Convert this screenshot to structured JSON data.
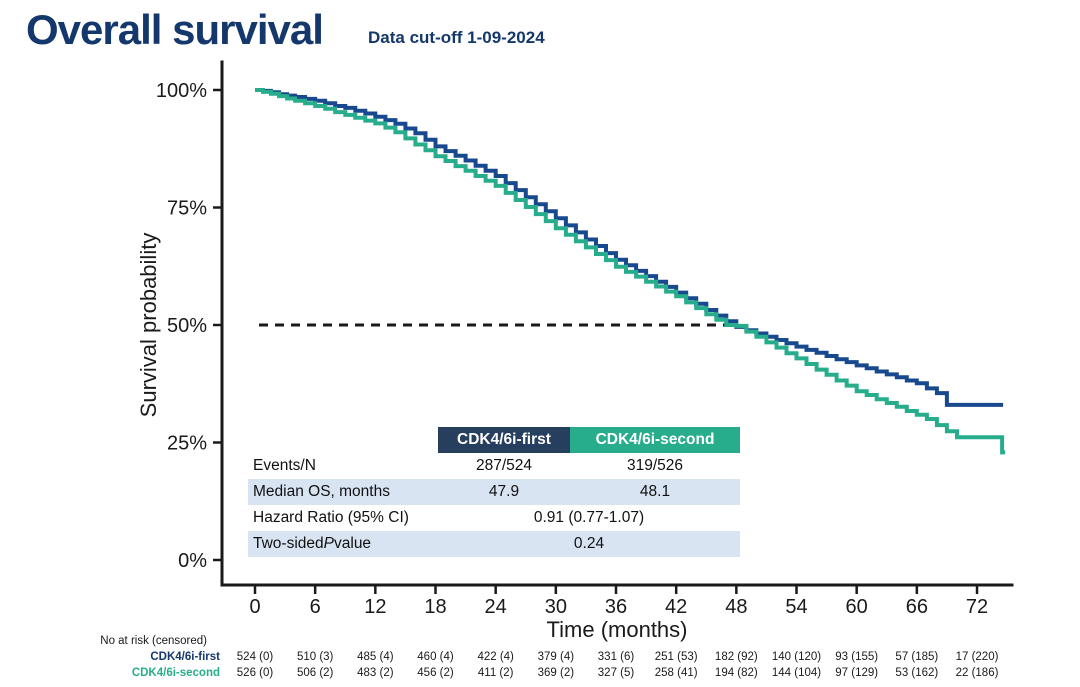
{
  "header": {
    "title": "Overall survival",
    "subtitle": "Data cut-off 1-09-2024"
  },
  "colors": {
    "title_navy": "#14386b",
    "curve_first": "#18498e",
    "curve_second": "#27ad8c",
    "table_header_first_bg": "#273f5e",
    "table_header_second_bg": "#27ad8c",
    "table_band_bg": "#d9e4f3",
    "axis": "#1a1a1a"
  },
  "chart_data": {
    "type": "line",
    "subtype": "kaplan-meier-step",
    "title": "Overall survival",
    "xlabel": "Time (months)",
    "ylabel": "Survival probability",
    "xlim": [
      0,
      76
    ],
    "ylim": [
      0,
      100
    ],
    "grid": false,
    "x_ticks": [
      0,
      6,
      12,
      18,
      24,
      30,
      36,
      42,
      48,
      54,
      60,
      66,
      72
    ],
    "y_ticks": [
      {
        "value": 100,
        "label": "100%"
      },
      {
        "value": 75,
        "label": "75%"
      },
      {
        "value": 50,
        "label": "50%"
      },
      {
        "value": 25,
        "label": "25%"
      },
      {
        "value": 0,
        "label": "0%"
      }
    ],
    "reference_line": {
      "y": 50,
      "style": "dashed",
      "x_start": 0,
      "x_end": 47.5
    },
    "series": [
      {
        "name": "CDK4/6i-first",
        "color": "#18498e",
        "points": [
          [
            0,
            100
          ],
          [
            0.8,
            99.8
          ],
          [
            1.6,
            99.5
          ],
          [
            2.4,
            99.1
          ],
          [
            3.2,
            98.8
          ],
          [
            4,
            98.5
          ],
          [
            5,
            98.1
          ],
          [
            6,
            97.7
          ],
          [
            7,
            97.2
          ],
          [
            8,
            96.6
          ],
          [
            9,
            96.2
          ],
          [
            10,
            95.6
          ],
          [
            11,
            95
          ],
          [
            12,
            94.3
          ],
          [
            13,
            93.6
          ],
          [
            14,
            92.8
          ],
          [
            15,
            91.8
          ],
          [
            16,
            90.8
          ],
          [
            17,
            89.4
          ],
          [
            18,
            88
          ],
          [
            19,
            87
          ],
          [
            20,
            86
          ],
          [
            21,
            85
          ],
          [
            22,
            83.9
          ],
          [
            23,
            82.8
          ],
          [
            24,
            81.7
          ],
          [
            25,
            80.2
          ],
          [
            26,
            78.7
          ],
          [
            27,
            77.2
          ],
          [
            28,
            75.7
          ],
          [
            29,
            74.2
          ],
          [
            30,
            72.7
          ],
          [
            31,
            71.2
          ],
          [
            32,
            69.7
          ],
          [
            33,
            68.2
          ],
          [
            34,
            66.8
          ],
          [
            35,
            65.3
          ],
          [
            36,
            63.9
          ],
          [
            37,
            62.7
          ],
          [
            38,
            61.5
          ],
          [
            39,
            60.4
          ],
          [
            40,
            59.2
          ],
          [
            41,
            58.1
          ],
          [
            42,
            56.9
          ],
          [
            43,
            55.7
          ],
          [
            44,
            54.5
          ],
          [
            45,
            53.2
          ],
          [
            46,
            52
          ],
          [
            47,
            50.8
          ],
          [
            48,
            49.6
          ],
          [
            49,
            48.9
          ],
          [
            50,
            48.2
          ],
          [
            51,
            47.5
          ],
          [
            52,
            46.8
          ],
          [
            53,
            46.1
          ],
          [
            54,
            45.4
          ],
          [
            55,
            44.7
          ],
          [
            56,
            44.1
          ],
          [
            57,
            43.4
          ],
          [
            58,
            42.7
          ],
          [
            59,
            42.1
          ],
          [
            60,
            41.4
          ],
          [
            61,
            40.8
          ],
          [
            62,
            40.1
          ],
          [
            63,
            39.5
          ],
          [
            64,
            38.9
          ],
          [
            65,
            38.2
          ],
          [
            66,
            37.6
          ],
          [
            67,
            36.5
          ],
          [
            68,
            35.5
          ],
          [
            69,
            33
          ],
          [
            74.6,
            33
          ]
        ]
      },
      {
        "name": "CDK4/6i-second",
        "color": "#27ad8c",
        "points": [
          [
            0,
            100
          ],
          [
            0.8,
            99.6
          ],
          [
            1.6,
            99.2
          ],
          [
            2.4,
            98.7
          ],
          [
            3.2,
            98.2
          ],
          [
            4,
            97.7
          ],
          [
            5,
            97.2
          ],
          [
            6,
            96.6
          ],
          [
            7,
            96
          ],
          [
            8,
            95.3
          ],
          [
            9,
            94.7
          ],
          [
            10,
            94.1
          ],
          [
            11,
            93.5
          ],
          [
            12,
            92.9
          ],
          [
            13,
            92
          ],
          [
            14,
            91
          ],
          [
            15,
            89.7
          ],
          [
            16,
            88.4
          ],
          [
            17,
            87.2
          ],
          [
            18,
            85.9
          ],
          [
            19,
            84.9
          ],
          [
            20,
            83.8
          ],
          [
            21,
            82.8
          ],
          [
            22,
            81.7
          ],
          [
            23,
            80.7
          ],
          [
            24,
            79.6
          ],
          [
            25,
            78.1
          ],
          [
            26,
            76.6
          ],
          [
            27,
            75.1
          ],
          [
            28,
            73.6
          ],
          [
            29,
            72.1
          ],
          [
            30,
            70.6
          ],
          [
            31,
            69.2
          ],
          [
            32,
            67.8
          ],
          [
            33,
            66.5
          ],
          [
            34,
            65.1
          ],
          [
            35,
            63.8
          ],
          [
            36,
            62.4
          ],
          [
            37,
            61.3
          ],
          [
            38,
            60.3
          ],
          [
            39,
            59.2
          ],
          [
            40,
            58.2
          ],
          [
            41,
            57.1
          ],
          [
            42,
            56.1
          ],
          [
            43,
            54.8
          ],
          [
            44,
            53.6
          ],
          [
            45,
            52.3
          ],
          [
            46,
            51.1
          ],
          [
            47,
            50
          ],
          [
            48,
            49.8
          ],
          [
            49,
            48.6
          ],
          [
            50,
            47.5
          ],
          [
            51,
            46.3
          ],
          [
            52,
            45.2
          ],
          [
            53,
            44
          ],
          [
            54,
            42.9
          ],
          [
            55,
            41.7
          ],
          [
            56,
            40.5
          ],
          [
            57,
            39.4
          ],
          [
            58,
            38.2
          ],
          [
            59,
            37.1
          ],
          [
            60,
            35.9
          ],
          [
            61,
            35.1
          ],
          [
            62,
            34.2
          ],
          [
            63,
            33.4
          ],
          [
            64,
            32.6
          ],
          [
            65,
            31.7
          ],
          [
            66,
            30.9
          ],
          [
            67,
            30
          ],
          [
            68,
            28.7
          ],
          [
            69,
            27.4
          ],
          [
            70,
            26.1
          ],
          [
            74.5,
            26.1
          ],
          [
            74.5,
            22.9
          ],
          [
            74.8,
            22.9
          ]
        ]
      }
    ]
  },
  "stats_table": {
    "columns": [
      "CDK4/6i-first",
      "CDK4/6i-second"
    ],
    "rows": [
      {
        "label": "Events/N",
        "first": "287/524",
        "second": "319/526"
      },
      {
        "label": "Median OS, months",
        "first": "47.9",
        "second": "48.1"
      },
      {
        "label": "Hazard Ratio (95% CI)",
        "combined": "0.91 (0.77-1.07)"
      },
      {
        "label_prefix": "Two-sided ",
        "label_italic": "P",
        "label_suffix": " value",
        "combined": "0.24"
      }
    ]
  },
  "risk_table": {
    "caption": "No at risk (censored)",
    "time_points": [
      0,
      6,
      12,
      18,
      24,
      30,
      36,
      42,
      48,
      54,
      60,
      66,
      72
    ],
    "rows": [
      {
        "name": "CDK4/6i-first",
        "values": [
          "524 (0)",
          "510 (3)",
          "485 (4)",
          "460 (4)",
          "422 (4)",
          "379 (4)",
          "331 (6)",
          "251 (53)",
          "182 (92)",
          "140 (120)",
          "93 (155)",
          "57 (185)",
          "17 (220)"
        ]
      },
      {
        "name": "CDK4/6i-second",
        "values": [
          "526 (0)",
          "506 (2)",
          "483 (2)",
          "456 (2)",
          "411 (2)",
          "369 (2)",
          "327 (5)",
          "258 (41)",
          "194 (82)",
          "144 (104)",
          "97 (129)",
          "53 (162)",
          "22 (186)"
        ]
      }
    ]
  }
}
